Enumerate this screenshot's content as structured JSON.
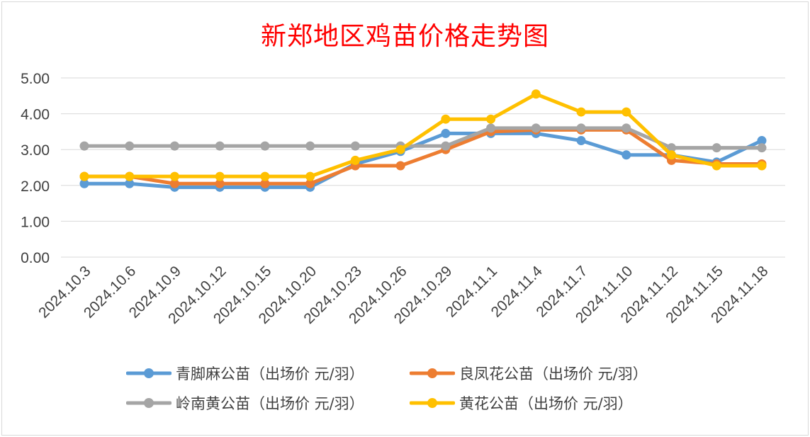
{
  "chart_data": {
    "type": "line",
    "title": "新郑地区鸡苗价格走势图",
    "categories": [
      "2024.10.3",
      "2024.10.6",
      "2024.10.9",
      "2024.10.12",
      "2024.10.15",
      "2024.10.20",
      "2024.10.23",
      "2024.10.26",
      "2024.10.29",
      "2024.11.1",
      "2024.11.4",
      "2024.11.7",
      "2024.11.10",
      "2024.11.12",
      "2024.11.15",
      "2024.11.18"
    ],
    "y_ticks": [
      "0.00",
      "1.00",
      "2.00",
      "3.00",
      "4.00",
      "5.00"
    ],
    "ylim": [
      0,
      5
    ],
    "grid": true,
    "legend_position": "bottom",
    "series": [
      {
        "name": "青脚麻公苗（出场价 元/羽）",
        "color": "#5b9bd5",
        "values": [
          2.05,
          2.05,
          1.95,
          1.95,
          1.95,
          1.95,
          2.6,
          2.95,
          3.45,
          3.45,
          3.45,
          3.25,
          2.85,
          2.85,
          2.65,
          3.25
        ]
      },
      {
        "name": "良凤花公苗（出场价 元/羽）",
        "color": "#ed7d31",
        "values": [
          2.25,
          2.25,
          2.05,
          2.05,
          2.05,
          2.05,
          2.55,
          2.55,
          3.0,
          3.5,
          3.55,
          3.55,
          3.55,
          2.7,
          2.6,
          2.6
        ]
      },
      {
        "name": "岭南黄公苗（出场价 元/羽）",
        "color": "#a5a5a5",
        "values": [
          3.1,
          3.1,
          3.1,
          3.1,
          3.1,
          3.1,
          3.1,
          3.1,
          3.1,
          3.6,
          3.6,
          3.6,
          3.6,
          3.05,
          3.05,
          3.05
        ]
      },
      {
        "name": "黄花公苗（出场价 元/羽）",
        "color": "#ffc000",
        "values": [
          2.25,
          2.25,
          2.25,
          2.25,
          2.25,
          2.25,
          2.7,
          3.0,
          3.85,
          3.85,
          4.55,
          4.05,
          4.05,
          2.85,
          2.55,
          2.55
        ]
      }
    ]
  }
}
